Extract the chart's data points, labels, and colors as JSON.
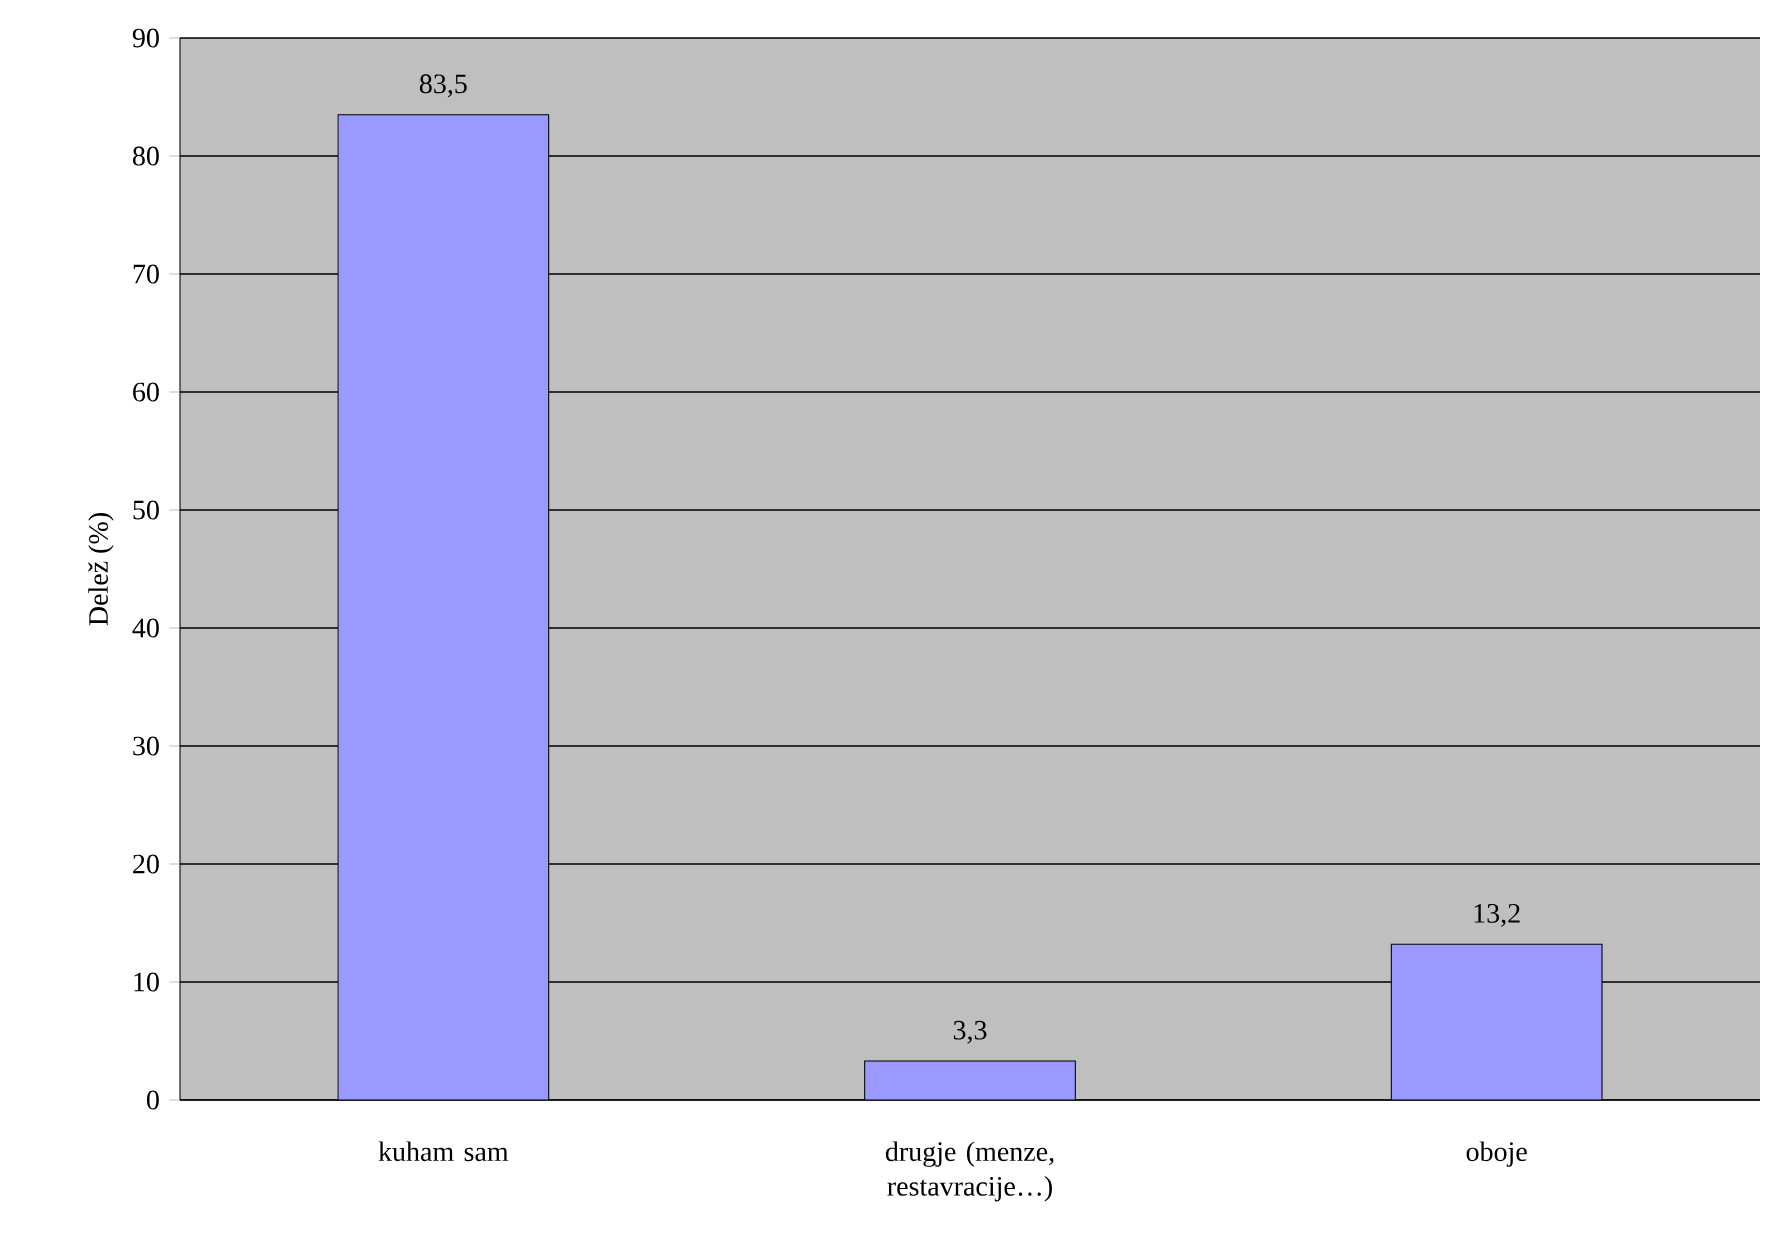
{
  "chart_data": {
    "type": "bar",
    "ylabel": "Delež (%)",
    "categories": [
      "kuham sam",
      "drugje (menze, restavracije…)",
      "oboje"
    ],
    "values": [
      83.5,
      3.3,
      13.2
    ],
    "value_labels": [
      "83,5",
      "3,3",
      "13,2"
    ],
    "color": "#9999ff",
    "ylim": [
      0,
      90
    ],
    "yticks": [
      0,
      10,
      20,
      30,
      40,
      50,
      60,
      70,
      80,
      90
    ],
    "grid": "y"
  }
}
